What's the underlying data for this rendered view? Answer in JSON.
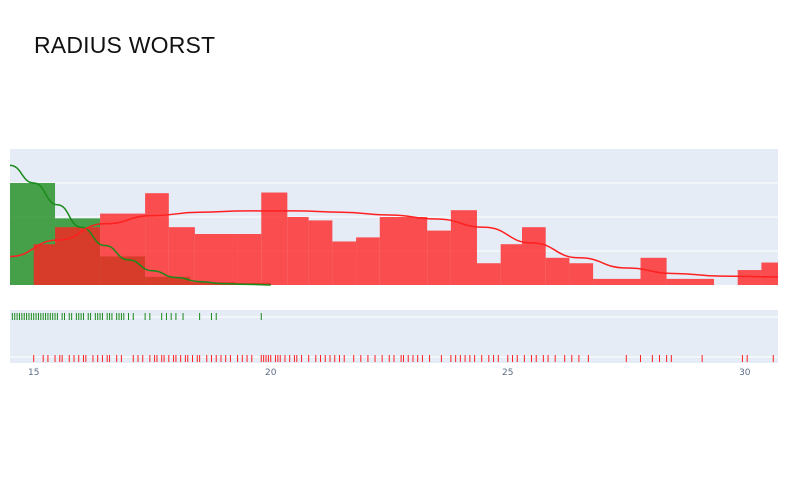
{
  "title": "RADIUS WORST",
  "chart_data": {
    "type": "histogram-distplot",
    "title": "RADIUS WORST",
    "xlabel": "",
    "ylabel": "",
    "xlim": [
      14.5,
      30.7
    ],
    "xticks": [
      15,
      20,
      25,
      30
    ],
    "colors": {
      "series_a": "#1a8a1a",
      "series_b": "#ff2020",
      "plot_bg": "#e5ecf6",
      "grid": "#ffffff"
    },
    "histograms": [
      {
        "color": "#1a8a1a",
        "bins": [
          {
            "x0": 14.5,
            "x1": 15.45,
            "y": 0.15
          },
          {
            "x0": 15.45,
            "x1": 16.4,
            "y": 0.098
          },
          {
            "x0": 16.4,
            "x1": 17.35,
            "y": 0.042
          },
          {
            "x0": 17.35,
            "x1": 18.3,
            "y": 0.012
          },
          {
            "x0": 18.3,
            "x1": 19.25,
            "y": 0.004
          },
          {
            "x0": 19.25,
            "x1": 20.0,
            "y": 0.003
          }
        ]
      },
      {
        "color": "#ff2020",
        "bins": [
          {
            "x0": 14.5,
            "x1": 15.0,
            "y": 0.0
          },
          {
            "x0": 15.0,
            "x1": 15.45,
            "y": 0.06
          },
          {
            "x0": 15.45,
            "x1": 16.4,
            "y": 0.085
          },
          {
            "x0": 16.4,
            "x1": 17.35,
            "y": 0.105
          },
          {
            "x0": 17.35,
            "x1": 17.85,
            "y": 0.135
          },
          {
            "x0": 17.85,
            "x1": 18.4,
            "y": 0.085
          },
          {
            "x0": 18.4,
            "x1": 19.3,
            "y": 0.075
          },
          {
            "x0": 19.3,
            "x1": 19.8,
            "y": 0.075
          },
          {
            "x0": 19.8,
            "x1": 20.35,
            "y": 0.136
          },
          {
            "x0": 20.35,
            "x1": 20.8,
            "y": 0.1
          },
          {
            "x0": 20.8,
            "x1": 21.3,
            "y": 0.095
          },
          {
            "x0": 21.3,
            "x1": 21.8,
            "y": 0.064
          },
          {
            "x0": 21.8,
            "x1": 22.3,
            "y": 0.07
          },
          {
            "x0": 22.3,
            "x1": 23.3,
            "y": 0.1
          },
          {
            "x0": 23.3,
            "x1": 23.8,
            "y": 0.08
          },
          {
            "x0": 23.8,
            "x1": 24.35,
            "y": 0.11
          },
          {
            "x0": 24.35,
            "x1": 24.85,
            "y": 0.032
          },
          {
            "x0": 24.85,
            "x1": 25.3,
            "y": 0.06
          },
          {
            "x0": 25.3,
            "x1": 25.8,
            "y": 0.085
          },
          {
            "x0": 25.8,
            "x1": 26.3,
            "y": 0.04
          },
          {
            "x0": 26.3,
            "x1": 26.8,
            "y": 0.032
          },
          {
            "x0": 26.8,
            "x1": 27.8,
            "y": 0.009
          },
          {
            "x0": 27.8,
            "x1": 28.35,
            "y": 0.04
          },
          {
            "x0": 28.35,
            "x1": 29.35,
            "y": 0.009
          },
          {
            "x0": 29.35,
            "x1": 29.85,
            "y": 0.0
          },
          {
            "x0": 29.85,
            "x1": 30.35,
            "y": 0.022
          },
          {
            "x0": 30.35,
            "x1": 30.7,
            "y": 0.033
          }
        ]
      }
    ],
    "density_curves": [
      {
        "color": "#1a8a1a",
        "x": [
          14.5,
          15.0,
          15.5,
          16.0,
          16.5,
          17.0,
          17.5,
          18.0,
          18.5,
          19.0,
          19.5,
          20.0
        ],
        "y": [
          0.176,
          0.15,
          0.118,
          0.085,
          0.058,
          0.037,
          0.021,
          0.011,
          0.005,
          0.002,
          0.001,
          0.0
        ]
      },
      {
        "color": "#ff2020",
        "x": [
          14.5,
          15.5,
          16.5,
          17.5,
          18.5,
          19.5,
          20.5,
          21.5,
          22.5,
          23.5,
          24.5,
          25.5,
          26.5,
          27.5,
          28.5,
          29.5,
          30.7
        ],
        "y": [
          0.042,
          0.066,
          0.09,
          0.102,
          0.107,
          0.109,
          0.109,
          0.107,
          0.103,
          0.097,
          0.085,
          0.062,
          0.04,
          0.025,
          0.017,
          0.013,
          0.012
        ]
      }
    ],
    "rug_a": [
      14.55,
      14.6,
      14.65,
      14.7,
      14.75,
      14.8,
      14.85,
      14.9,
      14.95,
      15.0,
      15.05,
      15.1,
      15.15,
      15.2,
      15.25,
      15.3,
      15.35,
      15.4,
      15.45,
      15.5,
      15.6,
      15.65,
      15.75,
      15.8,
      15.9,
      15.95,
      16.0,
      16.05,
      16.15,
      16.2,
      16.3,
      16.35,
      16.4,
      16.45,
      16.55,
      16.6,
      16.65,
      16.75,
      16.8,
      16.85,
      16.9,
      17.0,
      17.1,
      17.35,
      17.45,
      17.7,
      17.8,
      17.9,
      18.0,
      18.15,
      18.5,
      18.75,
      18.85,
      19.8
    ],
    "rug_b": [
      15.0,
      15.2,
      15.3,
      15.45,
      15.55,
      15.6,
      15.75,
      15.85,
      15.95,
      16.05,
      16.1,
      16.25,
      16.35,
      16.45,
      16.55,
      16.6,
      16.75,
      16.85,
      17.1,
      17.2,
      17.3,
      17.45,
      17.55,
      17.6,
      17.7,
      17.75,
      17.85,
      17.95,
      18.0,
      18.1,
      18.2,
      18.25,
      18.35,
      18.45,
      18.5,
      18.65,
      18.75,
      18.85,
      18.95,
      19.05,
      19.15,
      19.3,
      19.4,
      19.5,
      19.6,
      19.8,
      19.85,
      19.9,
      19.95,
      20.0,
      20.1,
      20.15,
      20.2,
      20.3,
      20.4,
      20.5,
      20.55,
      20.65,
      20.8,
      20.95,
      21.05,
      21.15,
      21.25,
      21.35,
      21.45,
      21.55,
      21.75,
      21.9,
      22.05,
      22.2,
      22.35,
      22.5,
      22.6,
      22.75,
      22.8,
      22.9,
      23.0,
      23.1,
      23.2,
      23.35,
      23.6,
      23.8,
      23.9,
      24.0,
      24.1,
      24.2,
      24.3,
      24.45,
      24.6,
      24.7,
      24.8,
      25.0,
      25.1,
      25.2,
      25.35,
      25.5,
      25.6,
      25.75,
      25.85,
      26.0,
      26.2,
      26.35,
      26.5,
      26.7,
      27.5,
      27.8,
      28.05,
      28.2,
      28.35,
      28.45,
      29.1,
      29.95,
      30.05,
      30.6
    ]
  }
}
